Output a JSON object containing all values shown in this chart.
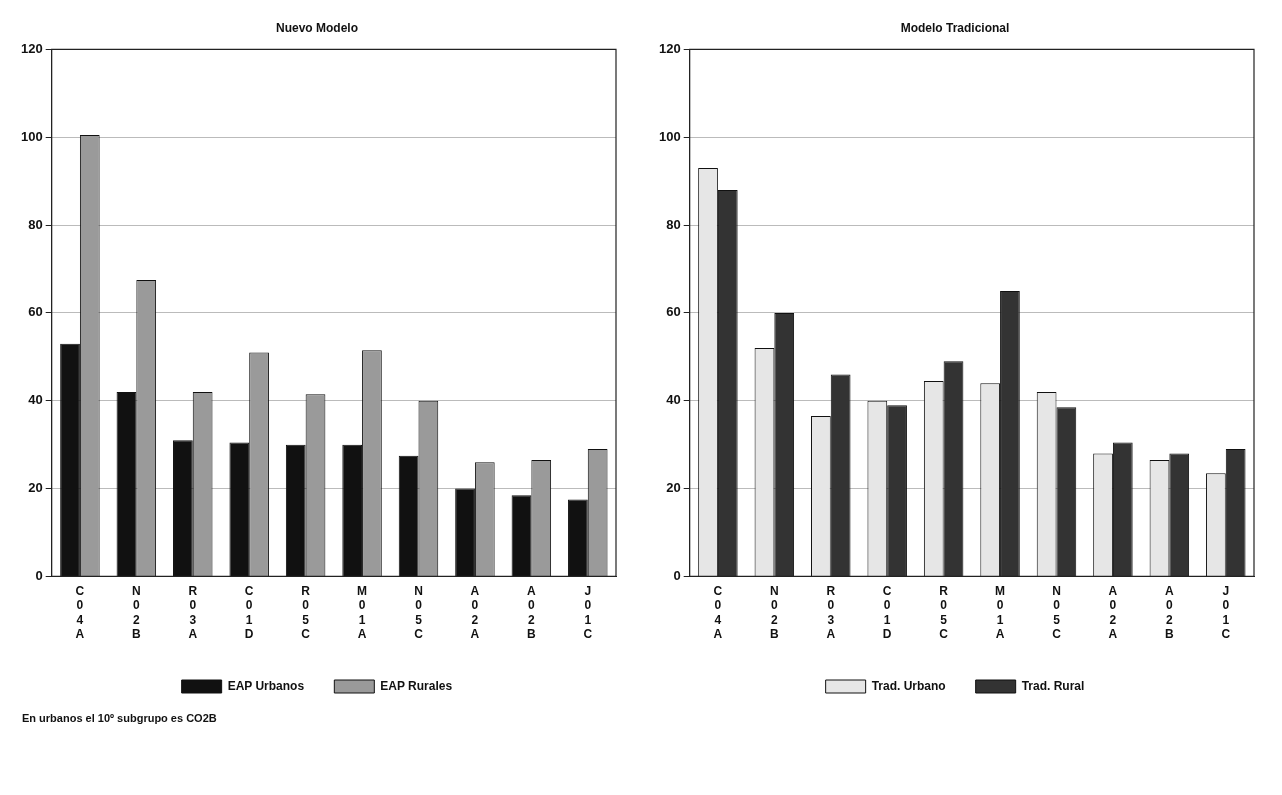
{
  "chart_data": [
    {
      "type": "bar",
      "title": "Nuevo Modelo",
      "categories": [
        "C04A",
        "N02B",
        "R03A",
        "C01D",
        "R05C",
        "M01A",
        "N05C",
        "A02A",
        "A02B",
        "J01C"
      ],
      "series": [
        {
          "name": "EAP Urbanos",
          "color": "#111111",
          "values": [
            53,
            42,
            31,
            30.5,
            30,
            30,
            27.5,
            20,
            18.5,
            17.5
          ]
        },
        {
          "name": "EAP Rurales",
          "color": "#9a9a9a",
          "values": [
            100.5,
            67.5,
            42,
            51,
            41.5,
            51.5,
            40,
            26,
            26.5,
            29
          ]
        }
      ],
      "ylim": [
        0,
        120
      ],
      "yticks": [
        0,
        20,
        40,
        60,
        80,
        100,
        120
      ],
      "grid": "y",
      "legend": "bottom",
      "annotations": [
        "En urbanos el 10º subgrupo es CO2B"
      ]
    },
    {
      "type": "bar",
      "title": "Modelo Tradicional",
      "categories": [
        "C04A",
        "N02B",
        "R03A",
        "C01D",
        "R05C",
        "M01A",
        "N05C",
        "A02A",
        "A02B",
        "J01C"
      ],
      "series": [
        {
          "name": "Trad. Urbano",
          "color": "#e6e6e6",
          "values": [
            93,
            52,
            36.5,
            40,
            44.5,
            44,
            42,
            28,
            26.5,
            23.5
          ]
        },
        {
          "name": "Trad. Rural",
          "color": "#333333",
          "values": [
            88,
            60,
            46,
            39,
            49,
            65,
            38.5,
            30.5,
            28,
            29
          ]
        }
      ],
      "ylim": [
        0,
        120
      ],
      "yticks": [
        0,
        20,
        40,
        60,
        80,
        100,
        120
      ],
      "grid": "y",
      "legend": "bottom"
    }
  ]
}
